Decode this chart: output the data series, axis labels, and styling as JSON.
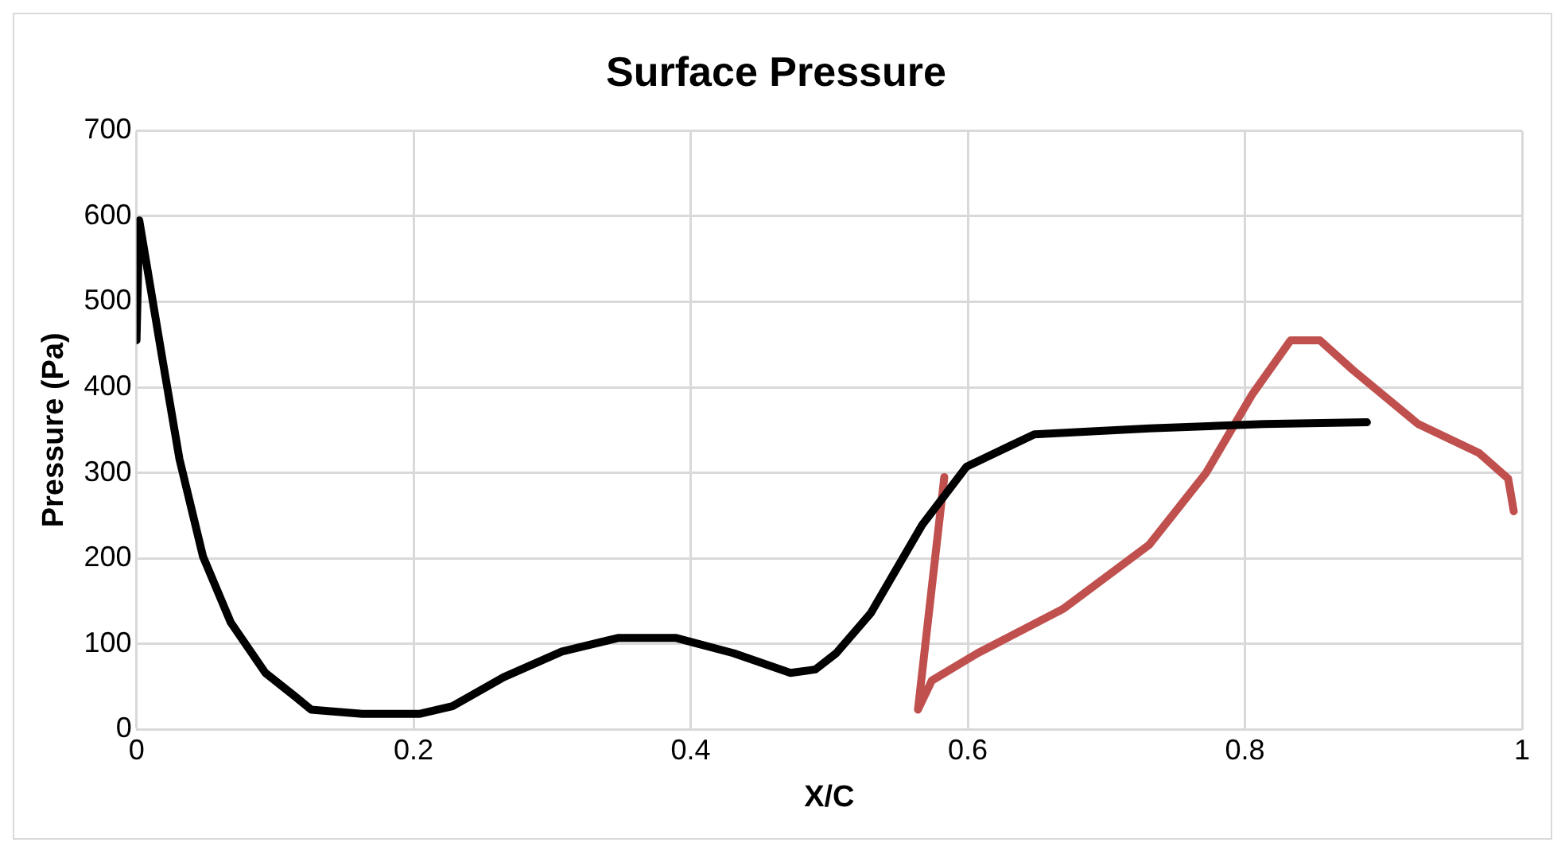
{
  "chart_data": {
    "type": "line",
    "title": "Surface Pressure",
    "xlabel": "X/C",
    "ylabel": "Pressure (Pa)",
    "xlim": [
      0,
      1
    ],
    "xticks": [
      0,
      0.2,
      0.4,
      0.6,
      0.8,
      1
    ],
    "ylim": [
      0,
      700
    ],
    "yticks": [
      0,
      100,
      200,
      300,
      400,
      500,
      600,
      700
    ],
    "grid": true,
    "marker": "none",
    "line_style": "solid",
    "series": [
      {
        "color": "#000000",
        "x": [
          0,
          0.002,
          0.019,
          0.031,
          0.048,
          0.068,
          0.093,
          0.114,
          0.126,
          0.163,
          0.204,
          0.228,
          0.265,
          0.307,
          0.348,
          0.389,
          0.431,
          0.472,
          0.49,
          0.505,
          0.53,
          0.567,
          0.599,
          0.648,
          0.731,
          0.814,
          0.888
        ],
        "values": [
          455,
          595,
          430,
          316,
          202,
          125,
          66,
          39,
          23,
          18,
          18,
          27,
          61,
          91,
          107,
          107,
          89,
          66,
          70,
          89,
          136,
          239,
          307,
          345,
          352,
          357,
          359
        ]
      },
      {
        "color": "#c0504d",
        "x": [
          0.583,
          0.564,
          0.574,
          0.607,
          0.669,
          0.731,
          0.772,
          0.805,
          0.833,
          0.854,
          0.878,
          0.925,
          0.969,
          0.99,
          0.994
        ],
        "values": [
          295,
          23,
          57,
          89,
          141,
          216,
          300,
          391,
          455,
          455,
          420,
          357,
          323,
          293,
          255
        ]
      }
    ]
  }
}
